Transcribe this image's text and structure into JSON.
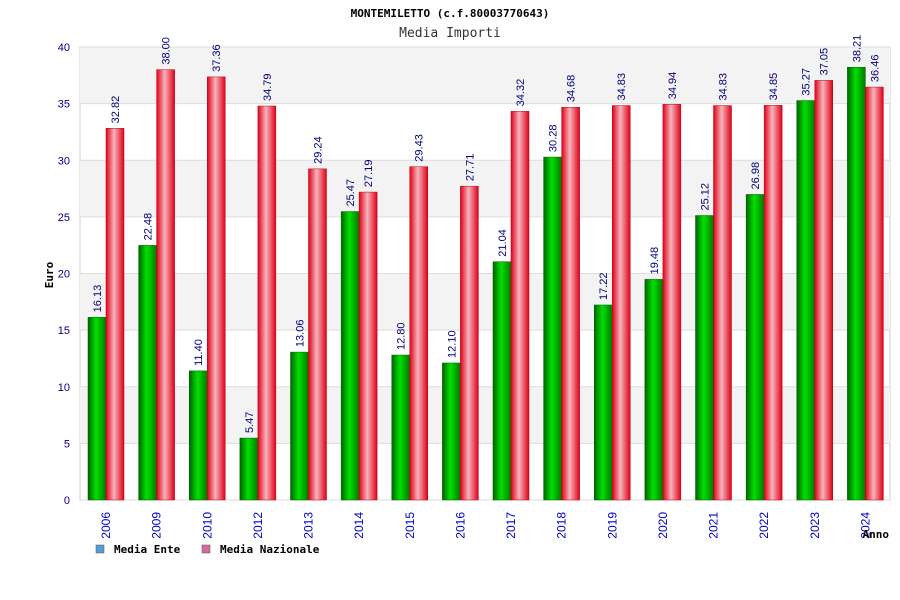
{
  "chart_data": {
    "type": "bar",
    "title": "MONTEMILETTO (c.f.80003770643)",
    "subtitle": "Media Importi",
    "xlabel": "Anno",
    "ylabel": "Euro",
    "ylim": [
      0,
      40
    ],
    "yticks": [
      "0",
      "5",
      "10",
      "15",
      "20",
      "25",
      "30",
      "35",
      "40"
    ],
    "grid": true,
    "legend_position": "bottom-left",
    "categories": [
      "2006",
      "2009",
      "2010",
      "2012",
      "2013",
      "2014",
      "2015",
      "2016",
      "2017",
      "2018",
      "2019",
      "2020",
      "2021",
      "2022",
      "2023",
      "2024"
    ],
    "series": [
      {
        "name": "Media Ente",
        "color": "#00a000",
        "legend_color": "#5b9bd5",
        "values": [
          16.13,
          22.48,
          11.4,
          5.47,
          13.06,
          25.47,
          12.8,
          12.1,
          21.04,
          30.28,
          17.22,
          19.48,
          25.12,
          26.98,
          35.27,
          38.21
        ],
        "labels": [
          "16.13",
          "22.48",
          "11.40",
          "5.47",
          "13.06",
          "25.47",
          "12.80",
          "12.10",
          "21.04",
          "30.28",
          "17.22",
          "19.48",
          "25.12",
          "26.98",
          "35.27",
          "38.21"
        ]
      },
      {
        "name": "Media Nazionale",
        "color": "#e01020",
        "legend_color": "#d46aa0",
        "values": [
          32.82,
          38.0,
          37.36,
          34.79,
          29.24,
          27.19,
          29.43,
          27.71,
          34.32,
          34.68,
          34.83,
          34.94,
          34.83,
          34.85,
          37.05,
          36.46
        ],
        "labels": [
          "32.82",
          "38.00",
          "37.36",
          "34.79",
          "29.24",
          "27.19",
          "29.43",
          "27.71",
          "34.32",
          "34.68",
          "34.83",
          "34.94",
          "34.83",
          "34.85",
          "37.05",
          "36.46"
        ]
      }
    ]
  }
}
